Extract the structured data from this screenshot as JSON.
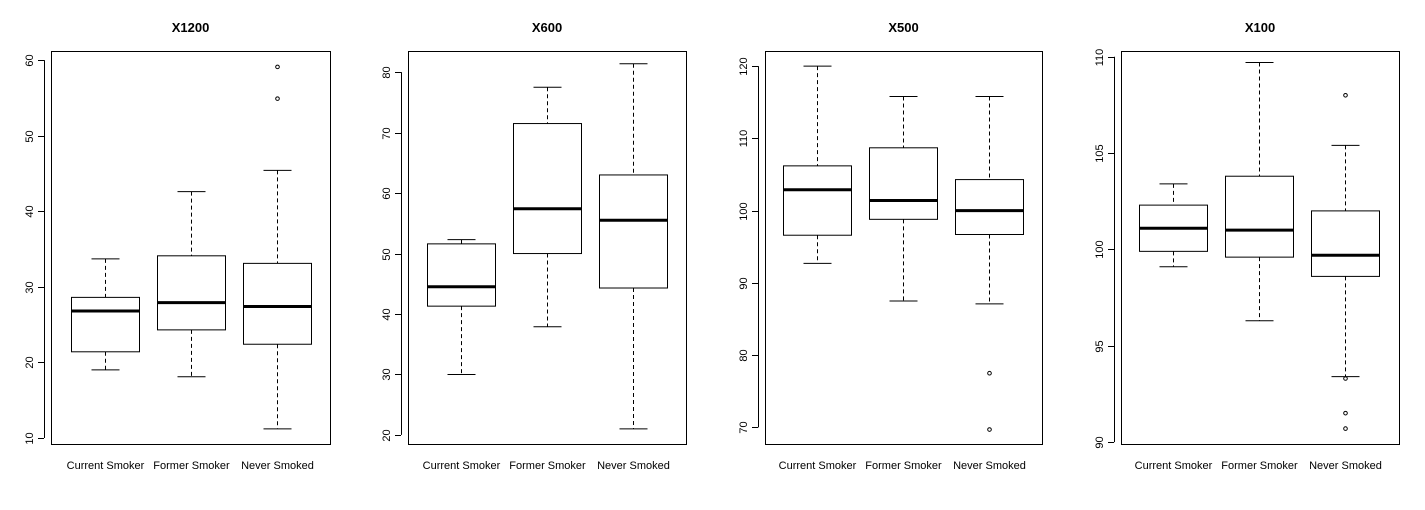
{
  "chart_data": [
    {
      "type": "boxplot",
      "title": "X1200",
      "categories": [
        "Current Smoker",
        "Former Smoker",
        "Never Smoked"
      ],
      "ylim": [
        9.2,
        61.2
      ],
      "yticks": [
        10,
        20,
        30,
        40,
        50,
        60
      ],
      "boxes": [
        {
          "whisker_low": 19,
          "q1": 21.4,
          "median": 26.8,
          "q3": 28.6,
          "whisker_high": 33.7,
          "outliers": []
        },
        {
          "whisker_low": 18.1,
          "q1": 24.3,
          "median": 27.9,
          "q3": 34.1,
          "whisker_high": 42.6,
          "outliers": []
        },
        {
          "whisker_low": 11.2,
          "q1": 22.4,
          "median": 27.4,
          "q3": 33.1,
          "whisker_high": 45.4,
          "outliers": [
            54.9,
            59.1
          ]
        }
      ]
    },
    {
      "type": "boxplot",
      "title": "X600",
      "categories": [
        "Current Smoker",
        "Former Smoker",
        "Never Smoked"
      ],
      "ylim": [
        18.5,
        83.5
      ],
      "yticks": [
        20,
        30,
        40,
        50,
        60,
        70,
        80
      ],
      "boxes": [
        {
          "whisker_low": 30,
          "q1": 41.3,
          "median": 44.5,
          "q3": 51.6,
          "whisker_high": 52.3,
          "outliers": []
        },
        {
          "whisker_low": 37.9,
          "q1": 50,
          "median": 57.4,
          "q3": 71.5,
          "whisker_high": 77.5,
          "outliers": []
        },
        {
          "whisker_low": 21,
          "q1": 44.3,
          "median": 55.5,
          "q3": 63,
          "whisker_high": 81.4,
          "outliers": []
        }
      ]
    },
    {
      "type": "boxplot",
      "title": "X500",
      "categories": [
        "Current Smoker",
        "Former Smoker",
        "Never Smoked"
      ],
      "ylim": [
        67.7,
        122.1
      ],
      "yticks": [
        70,
        80,
        90,
        100,
        110,
        120
      ],
      "boxes": [
        {
          "whisker_low": 92.7,
          "q1": 96.6,
          "median": 102.9,
          "q3": 106.2,
          "whisker_high": 120,
          "outliers": []
        },
        {
          "whisker_low": 87.5,
          "q1": 98.8,
          "median": 101.4,
          "q3": 108.7,
          "whisker_high": 115.8,
          "outliers": []
        },
        {
          "whisker_low": 87.1,
          "q1": 96.7,
          "median": 100,
          "q3": 104.3,
          "whisker_high": 115.8,
          "outliers": [
            77.5,
            69.7
          ]
        }
      ]
    },
    {
      "type": "boxplot",
      "title": "X100",
      "categories": [
        "Current Smoker",
        "Former Smoker",
        "Never Smoked"
      ],
      "ylim": [
        89.9,
        110.3
      ],
      "yticks": [
        90,
        95,
        100,
        105,
        110
      ],
      "boxes": [
        {
          "whisker_low": 99.1,
          "q1": 99.9,
          "median": 101.1,
          "q3": 102.3,
          "whisker_high": 103.4,
          "outliers": []
        },
        {
          "whisker_low": 96.3,
          "q1": 99.6,
          "median": 101,
          "q3": 103.8,
          "whisker_high": 109.7,
          "outliers": []
        },
        {
          "whisker_low": 93.4,
          "q1": 98.6,
          "median": 99.7,
          "q3": 102,
          "whisker_high": 105.4,
          "outliers": [
            108,
            93.3,
            91.5,
            90.7
          ]
        }
      ]
    }
  ]
}
